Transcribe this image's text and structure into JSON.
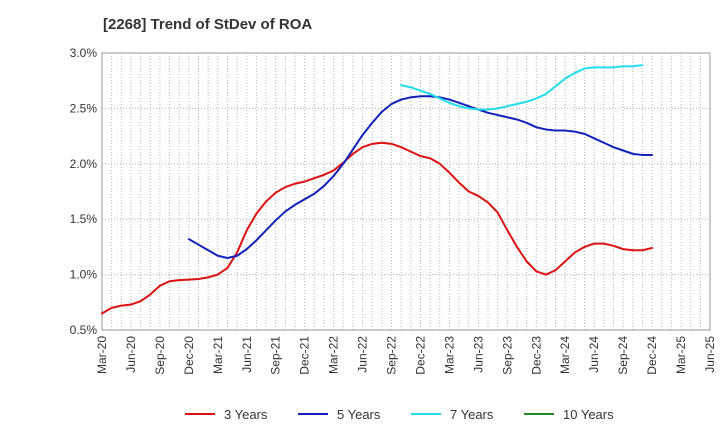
{
  "chart_data": {
    "type": "line",
    "title": "[2268]  Trend of StDev of ROA",
    "xlabel": "",
    "ylabel": "",
    "ylim": [
      0.5,
      3.0
    ],
    "y_ticks": [
      {
        "value": 0.5,
        "label": "0.5%"
      },
      {
        "value": 1.0,
        "label": "1.0%"
      },
      {
        "value": 1.5,
        "label": "1.5%"
      },
      {
        "value": 2.0,
        "label": "2.0%"
      },
      {
        "value": 2.5,
        "label": "2.5%"
      },
      {
        "value": 3.0,
        "label": "3.0%"
      }
    ],
    "x_tick_labels": [
      "Mar-20",
      "Jun-20",
      "Sep-20",
      "Dec-20",
      "Mar-21",
      "Jun-21",
      "Sep-21",
      "Dec-21",
      "Mar-22",
      "Jun-22",
      "Sep-22",
      "Dec-22",
      "Mar-23",
      "Jun-23",
      "Sep-23",
      "Dec-23",
      "Mar-24",
      "Jun-24",
      "Sep-24",
      "Dec-24",
      "Mar-25",
      "Jun-25"
    ],
    "grid": true,
    "legend_position": "bottom",
    "series": [
      {
        "name": "3 Years",
        "color": "#dd1111",
        "values": [
          [
            0,
            0.65
          ],
          [
            1,
            0.7
          ],
          [
            2,
            0.72
          ],
          [
            3,
            0.73
          ],
          [
            4,
            0.76
          ],
          [
            5,
            0.82
          ],
          [
            6,
            0.9
          ],
          [
            7,
            0.94
          ],
          [
            8,
            0.95
          ],
          [
            9,
            0.955
          ],
          [
            10,
            0.96
          ],
          [
            11,
            0.975
          ],
          [
            12,
            1.0
          ],
          [
            13,
            1.06
          ],
          [
            14,
            1.2
          ],
          [
            15,
            1.4
          ],
          [
            16,
            1.55
          ],
          [
            17,
            1.66
          ],
          [
            18,
            1.74
          ],
          [
            19,
            1.79
          ],
          [
            20,
            1.82
          ],
          [
            21,
            1.84
          ],
          [
            22,
            1.87
          ],
          [
            23,
            1.9
          ],
          [
            24,
            1.94
          ],
          [
            25,
            2.01
          ],
          [
            26,
            2.09
          ],
          [
            27,
            2.15
          ],
          [
            28,
            2.18
          ],
          [
            29,
            2.19
          ],
          [
            30,
            2.18
          ],
          [
            31,
            2.15
          ],
          [
            32,
            2.11
          ],
          [
            33,
            2.07
          ],
          [
            34,
            2.05
          ],
          [
            35,
            2.0
          ],
          [
            36,
            1.92
          ],
          [
            37,
            1.83
          ],
          [
            38,
            1.75
          ],
          [
            39,
            1.71
          ],
          [
            40,
            1.65
          ],
          [
            41,
            1.56
          ],
          [
            42,
            1.4
          ],
          [
            43,
            1.25
          ],
          [
            44,
            1.12
          ],
          [
            45,
            1.03
          ],
          [
            46,
            1.0
          ],
          [
            47,
            1.04
          ],
          [
            48,
            1.12
          ],
          [
            49,
            1.2
          ],
          [
            50,
            1.25
          ],
          [
            51,
            1.28
          ],
          [
            52,
            1.28
          ],
          [
            53,
            1.26
          ],
          [
            54,
            1.23
          ],
          [
            55,
            1.22
          ],
          [
            56,
            1.22
          ],
          [
            57,
            1.24
          ]
        ]
      },
      {
        "name": "5 Years",
        "color": "#1122bb",
        "values": [
          [
            9,
            1.32
          ],
          [
            10,
            1.27
          ],
          [
            11,
            1.22
          ],
          [
            12,
            1.17
          ],
          [
            13,
            1.15
          ],
          [
            14,
            1.17
          ],
          [
            15,
            1.23
          ],
          [
            16,
            1.31
          ],
          [
            17,
            1.4
          ],
          [
            18,
            1.49
          ],
          [
            19,
            1.57
          ],
          [
            20,
            1.63
          ],
          [
            21,
            1.68
          ],
          [
            22,
            1.73
          ],
          [
            23,
            1.8
          ],
          [
            24,
            1.89
          ],
          [
            25,
            2.0
          ],
          [
            26,
            2.13
          ],
          [
            27,
            2.26
          ],
          [
            28,
            2.37
          ],
          [
            29,
            2.47
          ],
          [
            30,
            2.54
          ],
          [
            31,
            2.58
          ],
          [
            32,
            2.6
          ],
          [
            33,
            2.61
          ],
          [
            34,
            2.61
          ],
          [
            35,
            2.6
          ],
          [
            36,
            2.58
          ],
          [
            37,
            2.55
          ],
          [
            38,
            2.52
          ],
          [
            39,
            2.49
          ],
          [
            40,
            2.46
          ],
          [
            41,
            2.44
          ],
          [
            42,
            2.42
          ],
          [
            43,
            2.4
          ],
          [
            44,
            2.37
          ],
          [
            45,
            2.33
          ],
          [
            46,
            2.31
          ],
          [
            47,
            2.3
          ],
          [
            48,
            2.3
          ],
          [
            49,
            2.29
          ],
          [
            50,
            2.27
          ],
          [
            51,
            2.23
          ],
          [
            52,
            2.19
          ],
          [
            53,
            2.15
          ],
          [
            54,
            2.12
          ],
          [
            55,
            2.09
          ],
          [
            56,
            2.08
          ],
          [
            57,
            2.08
          ]
        ]
      },
      {
        "name": "7 Years",
        "color": "#22ddee",
        "values": [
          [
            31,
            2.71
          ],
          [
            32,
            2.69
          ],
          [
            33,
            2.66
          ],
          [
            34,
            2.63
          ],
          [
            35,
            2.59
          ],
          [
            36,
            2.55
          ],
          [
            37,
            2.52
          ],
          [
            38,
            2.5
          ],
          [
            39,
            2.49
          ],
          [
            40,
            2.49
          ],
          [
            41,
            2.5
          ],
          [
            42,
            2.52
          ],
          [
            43,
            2.54
          ],
          [
            44,
            2.56
          ],
          [
            45,
            2.59
          ],
          [
            46,
            2.63
          ],
          [
            47,
            2.7
          ],
          [
            48,
            2.77
          ],
          [
            49,
            2.82
          ],
          [
            50,
            2.86
          ],
          [
            51,
            2.87
          ],
          [
            52,
            2.87
          ],
          [
            53,
            2.87
          ],
          [
            54,
            2.88
          ],
          [
            55,
            2.88
          ],
          [
            56,
            2.89
          ]
        ]
      },
      {
        "name": "10 Years",
        "color": "#228822",
        "values": []
      }
    ]
  }
}
